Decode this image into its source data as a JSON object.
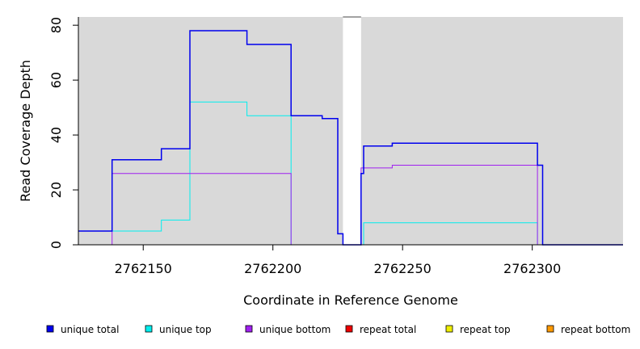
{
  "chart_data": {
    "type": "line",
    "xlabel": "Coordinate in Reference Genome",
    "ylabel": "Read Coverage Depth",
    "xlim": [
      2762125,
      2762335
    ],
    "ylim": [
      0,
      83
    ],
    "x_ticks": [
      2762150,
      2762200,
      2762250,
      2762300
    ],
    "y_ticks": [
      0,
      20,
      40,
      60,
      80
    ],
    "background": "#d9d9d9",
    "gap_region": [
      2762227,
      2762234
    ],
    "series": [
      {
        "name": "unique total",
        "color": "#0000ee",
        "points": [
          [
            2762125,
            5
          ],
          [
            2762138,
            5
          ],
          [
            2762138,
            31
          ],
          [
            2762157,
            31
          ],
          [
            2762157,
            35
          ],
          [
            2762168,
            35
          ],
          [
            2762168,
            78
          ],
          [
            2762190,
            78
          ],
          [
            2762190,
            73
          ],
          [
            2762207,
            73
          ],
          [
            2762207,
            47
          ],
          [
            2762219,
            47
          ],
          [
            2762219,
            46
          ],
          [
            2762225,
            46
          ],
          [
            2762225,
            4
          ],
          [
            2762227,
            4
          ],
          [
            2762227,
            0
          ],
          [
            2762234,
            0
          ],
          [
            2762234,
            26
          ],
          [
            2762235,
            26
          ],
          [
            2762235,
            36
          ],
          [
            2762246,
            36
          ],
          [
            2762246,
            37
          ],
          [
            2762302,
            37
          ],
          [
            2762302,
            29
          ],
          [
            2762304,
            29
          ],
          [
            2762304,
            0
          ],
          [
            2762335,
            0
          ]
        ]
      },
      {
        "name": "unique top",
        "color": "#00eeee",
        "points": [
          [
            2762125,
            5
          ],
          [
            2762157,
            5
          ],
          [
            2762157,
            9
          ],
          [
            2762168,
            9
          ],
          [
            2762168,
            52
          ],
          [
            2762190,
            52
          ],
          [
            2762190,
            47
          ],
          [
            2762207,
            47
          ],
          [
            2762207,
            0
          ],
          [
            2762235,
            0
          ],
          [
            2762235,
            8
          ],
          [
            2762302,
            8
          ],
          [
            2762302,
            0
          ],
          [
            2762335,
            0
          ]
        ]
      },
      {
        "name": "unique bottom",
        "color": "#a020f0",
        "points": [
          [
            2762125,
            0
          ],
          [
            2762138,
            0
          ],
          [
            2762138,
            26
          ],
          [
            2762207,
            26
          ],
          [
            2762207,
            0
          ],
          [
            2762234,
            0
          ],
          [
            2762234,
            28
          ],
          [
            2762246,
            28
          ],
          [
            2762246,
            29
          ],
          [
            2762302,
            29
          ],
          [
            2762302,
            0
          ],
          [
            2762335,
            0
          ]
        ]
      },
      {
        "name": "repeat total",
        "color": "#ee0000",
        "points": [
          [
            2762125,
            0
          ],
          [
            2762335,
            0
          ]
        ]
      },
      {
        "name": "repeat top",
        "color": "#eeee00",
        "points": [
          [
            2762125,
            0
          ],
          [
            2762335,
            0
          ]
        ]
      },
      {
        "name": "repeat bottom",
        "color": "#ff9900",
        "points": [
          [
            2762125,
            0
          ],
          [
            2762335,
            0
          ]
        ]
      }
    ],
    "legend": {
      "placement": "bottom",
      "entries": [
        "unique total",
        "unique top",
        "unique bottom",
        "repeat total",
        "repeat top",
        "repeat bottom"
      ]
    }
  }
}
